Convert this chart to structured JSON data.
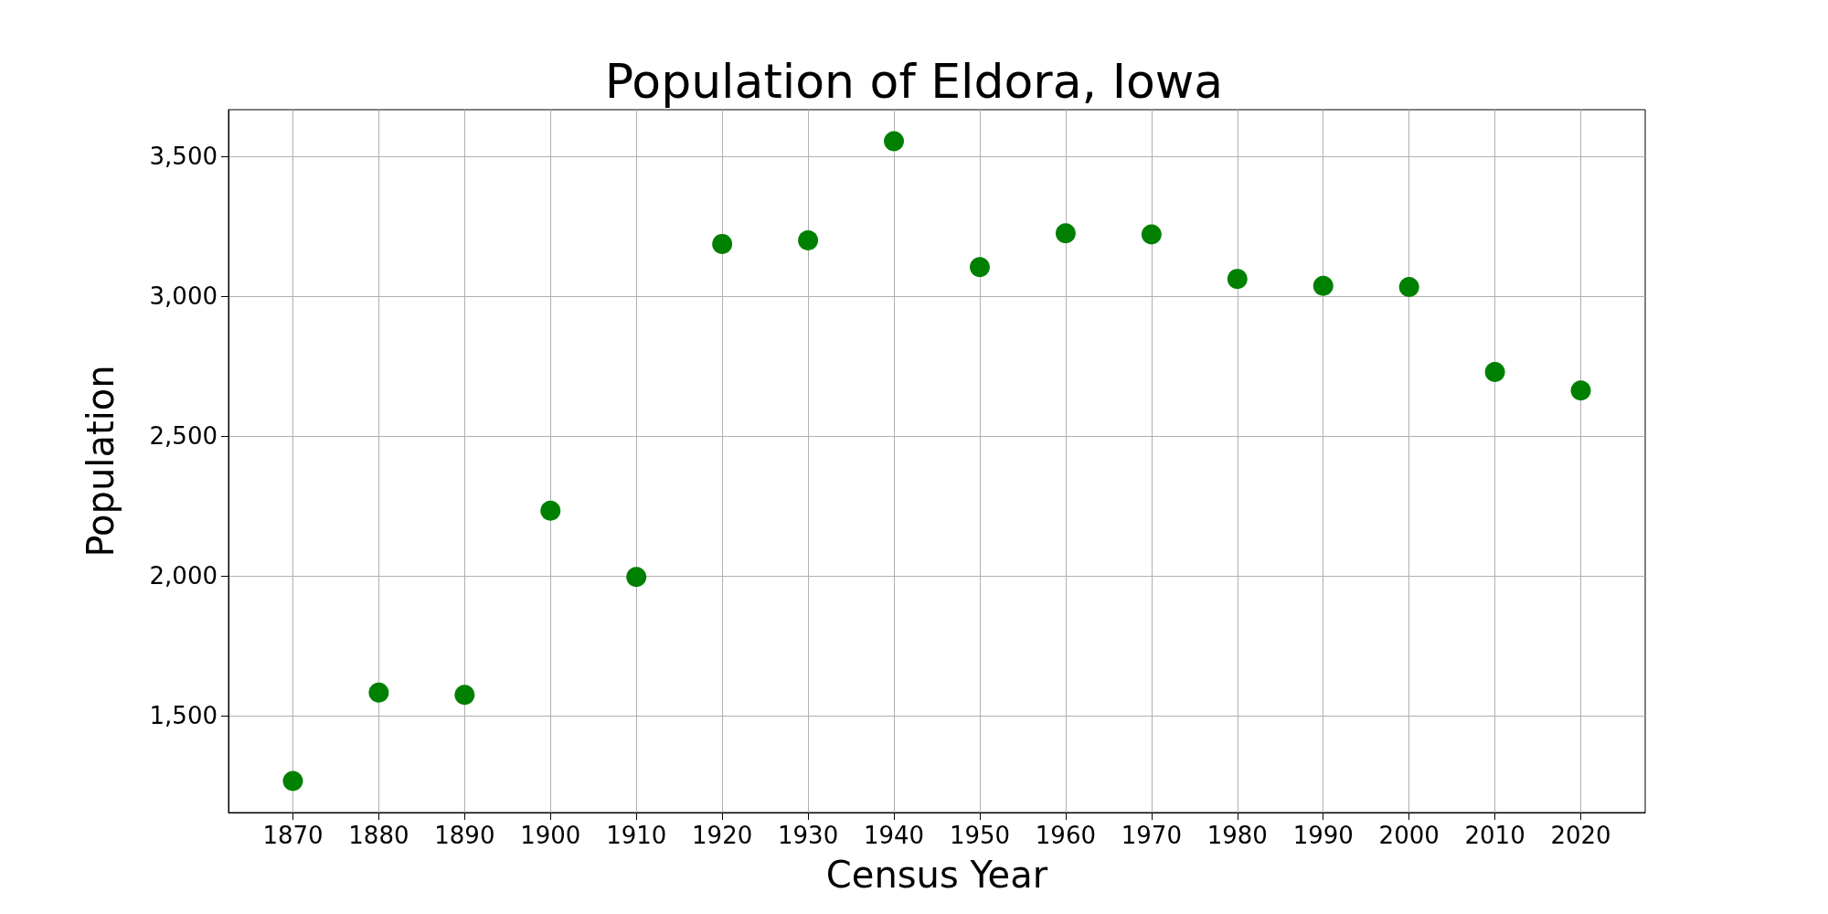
{
  "chart_data": {
    "type": "scatter",
    "title": "Population of Eldora, Iowa",
    "xlabel": "Census Year",
    "ylabel": "Population",
    "x": [
      1870,
      1880,
      1890,
      1900,
      1910,
      1920,
      1930,
      1940,
      1950,
      1960,
      1970,
      1980,
      1990,
      2000,
      2010,
      2020
    ],
    "series": [
      {
        "color": "#008000",
        "values": [
          1267,
          1583,
          1575,
          2233,
          1996,
          3187,
          3200,
          3554,
          3104,
          3225,
          3221,
          3062,
          3037,
          3033,
          2729,
          2663
        ]
      }
    ],
    "xlim": [
      1862.5,
      2027.5
    ],
    "xticks": [
      1870,
      1880,
      1890,
      1900,
      1910,
      1920,
      1930,
      1940,
      1950,
      1960,
      1970,
      1980,
      1990,
      2000,
      2010,
      2020
    ],
    "ylim": [
      1154,
      3667
    ],
    "yticks": [
      {
        "value": 1500,
        "label": "1,500"
      },
      {
        "value": 2000,
        "label": "2,000"
      },
      {
        "value": 2500,
        "label": "2,500"
      },
      {
        "value": 3000,
        "label": "3,000"
      },
      {
        "value": 3500,
        "label": "3,500"
      }
    ],
    "grid": true,
    "marker": "circle"
  }
}
